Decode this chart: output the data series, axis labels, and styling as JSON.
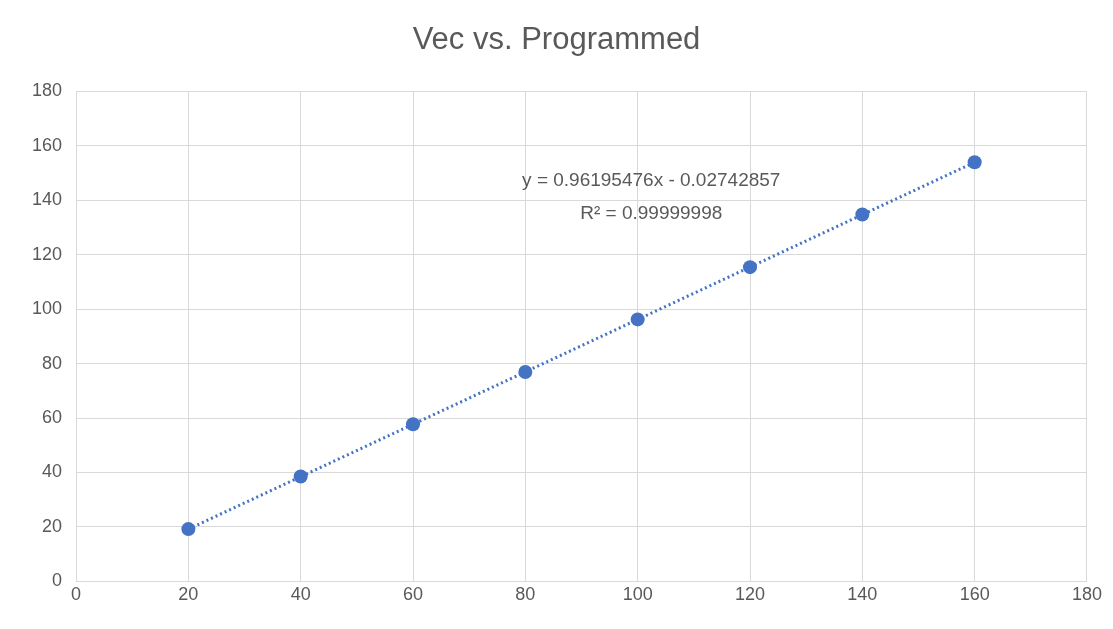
{
  "chart_data": {
    "type": "scatter",
    "title": "Vec vs. Programmed",
    "x": [
      20,
      40,
      60,
      80,
      100,
      120,
      140,
      160
    ],
    "series": [
      {
        "type": "scatter",
        "color": "#4472c4",
        "marker": "circle",
        "values": [
          19.2,
          38.5,
          57.7,
          76.9,
          96.2,
          115.4,
          134.7,
          153.9
        ]
      },
      {
        "type": "line",
        "color": "#4472c4",
        "marker": "none",
        "line_style": "dotted",
        "x": [
          20,
          160
        ],
        "values": [
          19.2,
          153.9
        ]
      }
    ],
    "annotations": [
      "y = 0.96195476x - 0.02742857",
      "R² = 0.99999998"
    ],
    "xlim": [
      0,
      180
    ],
    "xticks": [
      0,
      20,
      40,
      60,
      80,
      100,
      120,
      140,
      160,
      180
    ],
    "ylim": [
      0,
      180
    ],
    "yticks": [
      0,
      20,
      40,
      60,
      80,
      100,
      120,
      140,
      160,
      180
    ],
    "grid": true,
    "legend": false
  }
}
